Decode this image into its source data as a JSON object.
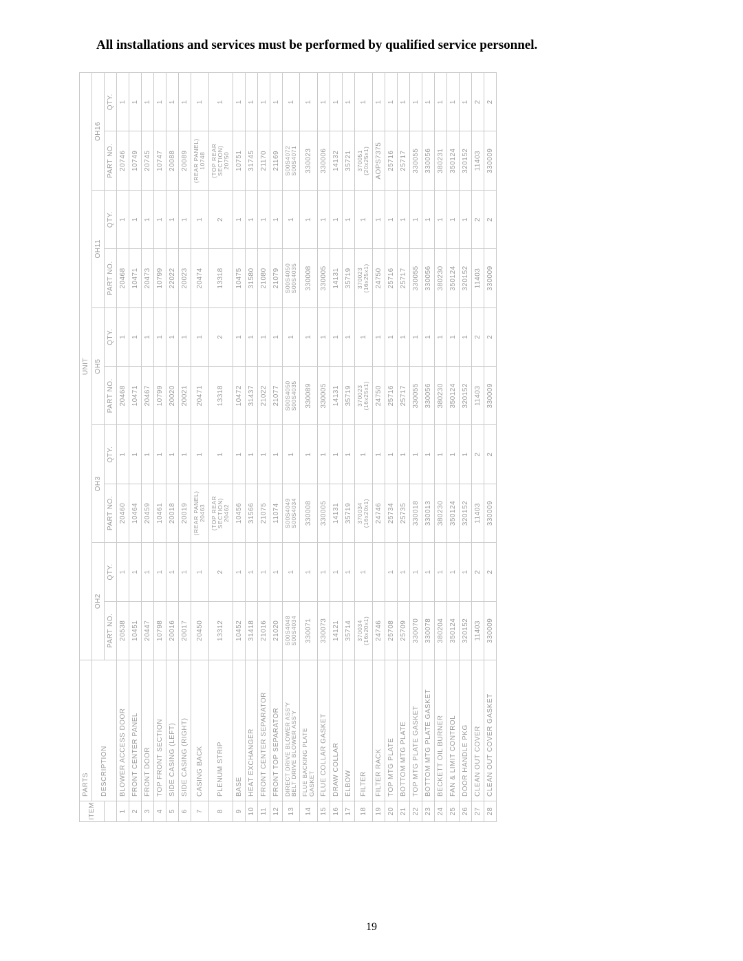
{
  "title": "All installations and services must be performed by qualified service personnel.",
  "page_number": "19",
  "headers": {
    "item": "ITEM",
    "parts": "PARTS",
    "desc": "DESCRIPTION",
    "unit": "UNIT",
    "part_no": "PART NO.",
    "qty": "QTY.",
    "models": [
      "OH2",
      "OH3",
      "OH5",
      "OH11",
      "OH16"
    ]
  },
  "rows": [
    {
      "item": "1",
      "desc": "BLOWER ACCESS DOOR",
      "oh2_p": "20538",
      "oh2_q": "1",
      "oh3_p": "20460",
      "oh3_q": "1",
      "oh5_p": "20468",
      "oh5_q": "1",
      "oh11_p": "20468",
      "oh11_q": "1",
      "oh16_p": "20746",
      "oh16_q": "1"
    },
    {
      "item": "2",
      "desc": "FRONT CENTER PANEL",
      "oh2_p": "10451",
      "oh2_q": "1",
      "oh3_p": "10464",
      "oh3_q": "1",
      "oh5_p": "10471",
      "oh5_q": "1",
      "oh11_p": "10471",
      "oh11_q": "1",
      "oh16_p": "10749",
      "oh16_q": "1"
    },
    {
      "item": "3",
      "desc": "FRONT DOOR",
      "oh2_p": "20447",
      "oh2_q": "1",
      "oh3_p": "20459",
      "oh3_q": "1",
      "oh5_p": "20467",
      "oh5_q": "1",
      "oh11_p": "20473",
      "oh11_q": "1",
      "oh16_p": "20745",
      "oh16_q": "1"
    },
    {
      "item": "4",
      "desc": "TOP FRONT SECTION",
      "oh2_p": "10798",
      "oh2_q": "1",
      "oh3_p": "10461",
      "oh3_q": "1",
      "oh5_p": "10799",
      "oh5_q": "1",
      "oh11_p": "10799",
      "oh11_q": "1",
      "oh16_p": "10747",
      "oh16_q": "1"
    },
    {
      "item": "5",
      "desc": "SIDE CASING (LEFT)",
      "oh2_p": "20016",
      "oh2_q": "1",
      "oh3_p": "20018",
      "oh3_q": "1",
      "oh5_p": "20020",
      "oh5_q": "1",
      "oh11_p": "22022",
      "oh11_q": "1",
      "oh16_p": "20088",
      "oh16_q": "1"
    },
    {
      "item": "6",
      "desc": "SIDE CASING (RIGHT)",
      "oh2_p": "20017",
      "oh2_q": "1",
      "oh3_p": "20019",
      "oh3_q": "1",
      "oh5_p": "20021",
      "oh5_q": "1",
      "oh11_p": "20023",
      "oh11_q": "1",
      "oh16_p": "20089",
      "oh16_q": "1"
    },
    {
      "item": "7",
      "desc": "CASING BACK",
      "oh2_p": "20450",
      "oh2_q": "1",
      "oh3_p": "(REAR PANEL)\n20463",
      "oh3_q": "1",
      "oh5_p": "20471",
      "oh5_q": "1",
      "oh11_p": "20474",
      "oh11_q": "1",
      "oh16_p": "(REAR PANEL)\n10748",
      "oh16_q": "1"
    },
    {
      "item": "8",
      "desc": "PLENUM STRIP",
      "oh2_p": "13312",
      "oh2_q": "2",
      "oh3_p": "(TOP REAR SECTION)\n20462",
      "oh3_q": "1",
      "oh5_p": "13318",
      "oh5_q": "2",
      "oh11_p": "13318",
      "oh11_q": "2",
      "oh16_p": "(TOP REAR SECTION)\n20750",
      "oh16_q": "1"
    },
    {
      "item": "9",
      "desc": "BASE",
      "oh2_p": "10452",
      "oh2_q": "1",
      "oh3_p": "10456",
      "oh3_q": "1",
      "oh5_p": "10472",
      "oh5_q": "1",
      "oh11_p": "10475",
      "oh11_q": "1",
      "oh16_p": "10751",
      "oh16_q": "1"
    },
    {
      "item": "10",
      "desc": "HEAT EXCHANGER",
      "oh2_p": "31418",
      "oh2_q": "1",
      "oh3_p": "31566",
      "oh3_q": "1",
      "oh5_p": "31437",
      "oh5_q": "1",
      "oh11_p": "31580",
      "oh11_q": "1",
      "oh16_p": "31745",
      "oh16_q": "1"
    },
    {
      "item": "11",
      "desc": "FRONT CENTER SEPARATOR",
      "oh2_p": "21016",
      "oh2_q": "1",
      "oh3_p": "21075",
      "oh3_q": "1",
      "oh5_p": "21022",
      "oh5_q": "1",
      "oh11_p": "21080",
      "oh11_q": "1",
      "oh16_p": "21170",
      "oh16_q": "1"
    },
    {
      "item": "12",
      "desc": "FRONT TOP SEPARATOR",
      "oh2_p": "21020",
      "oh2_q": "1",
      "oh3_p": "11074",
      "oh3_q": "1",
      "oh5_p": "21077",
      "oh5_q": "1",
      "oh11_p": "21079",
      "oh11_q": "1",
      "oh16_p": "21169",
      "oh16_q": "1"
    },
    {
      "item": "13",
      "desc": "DIRECT DRIVE BLOWER ASS'Y\nBELT DRIVE BLOWER ASS'Y",
      "oh2_p": "S00S4048\nS00S4034",
      "oh2_q": "1",
      "oh3_p": "S00S4049\nS00S4034",
      "oh3_q": "1",
      "oh5_p": "S00S4050\nS00S4035",
      "oh5_q": "1",
      "oh11_p": "S00S4050\nS00S4035",
      "oh11_q": "1",
      "oh16_p": "S00S4072\nS00S4071",
      "oh16_q": "1"
    },
    {
      "item": "14",
      "desc": "FLUE BACKING PLATE\nGASKET",
      "oh2_p": "330071",
      "oh2_q": "1",
      "oh3_p": "330008",
      "oh3_q": "1",
      "oh5_p": "330089",
      "oh5_q": "1",
      "oh11_p": "330008",
      "oh11_q": "1",
      "oh16_p": "330023",
      "oh16_q": "1"
    },
    {
      "item": "15",
      "desc": "FLUE COLLAR GASKET",
      "oh2_p": "330073",
      "oh2_q": "1",
      "oh3_p": "330005",
      "oh3_q": "1",
      "oh5_p": "330005",
      "oh5_q": "1",
      "oh11_p": "330005",
      "oh11_q": "1",
      "oh16_p": "330006",
      "oh16_q": "1"
    },
    {
      "item": "16",
      "desc": "DRAW COLLAR",
      "oh2_p": "14121",
      "oh2_q": "1",
      "oh3_p": "14131",
      "oh3_q": "1",
      "oh5_p": "14131",
      "oh5_q": "1",
      "oh11_p": "14131",
      "oh11_q": "1",
      "oh16_p": "14132",
      "oh16_q": "1"
    },
    {
      "item": "17",
      "desc": "ELBOW",
      "oh2_p": "35714",
      "oh2_q": "1",
      "oh3_p": "35719",
      "oh3_q": "1",
      "oh5_p": "35719",
      "oh5_q": "1",
      "oh11_p": "35719",
      "oh11_q": "1",
      "oh16_p": "35721",
      "oh16_q": "1"
    },
    {
      "item": "18",
      "desc": "FILTER",
      "oh2_p": "370034\n(16x20x1)",
      "oh2_q": "1",
      "oh3_p": "370034\n(16x20x1)",
      "oh3_q": "1",
      "oh5_p": "370023\n(16x25x1)",
      "oh5_q": "1",
      "oh11_p": "370023\n(16x25x1)",
      "oh11_q": "1",
      "oh16_p": "370051\n(20x25x1)",
      "oh16_q": "1"
    },
    {
      "item": "19",
      "desc": "FILTER RACK",
      "oh2_p": "24746",
      "oh2_q": "",
      "oh3_p": "24746",
      "oh3_q": "1",
      "oh5_p": "24750",
      "oh5_q": "1",
      "oh11_p": "24750",
      "oh11_q": "1",
      "oh16_p": "AOPS7375",
      "oh16_q": "1"
    },
    {
      "item": "20",
      "desc": "TOP MTG PLATE",
      "oh2_p": "25708",
      "oh2_q": "1",
      "oh3_p": "25734",
      "oh3_q": "1",
      "oh5_p": "25716",
      "oh5_q": "1",
      "oh11_p": "25716",
      "oh11_q": "1",
      "oh16_p": "25716",
      "oh16_q": "1"
    },
    {
      "item": "21",
      "desc": "BOTTOM MTG PLATE",
      "oh2_p": "25709",
      "oh2_q": "1",
      "oh3_p": "25735",
      "oh3_q": "1",
      "oh5_p": "25717",
      "oh5_q": "1",
      "oh11_p": "25717",
      "oh11_q": "1",
      "oh16_p": "25717",
      "oh16_q": "1"
    },
    {
      "item": "22",
      "desc": "TOP MTG PLATE GASKET",
      "oh2_p": "330070",
      "oh2_q": "1",
      "oh3_p": "330018",
      "oh3_q": "1",
      "oh5_p": "330055",
      "oh5_q": "1",
      "oh11_p": "330055",
      "oh11_q": "1",
      "oh16_p": "330055",
      "oh16_q": "1"
    },
    {
      "item": "23",
      "desc": "BOTTOM MTG PLATE GASKET",
      "oh2_p": "330078",
      "oh2_q": "1",
      "oh3_p": "330013",
      "oh3_q": "1",
      "oh5_p": "330056",
      "oh5_q": "1",
      "oh11_p": "330056",
      "oh11_q": "1",
      "oh16_p": "330056",
      "oh16_q": "1"
    },
    {
      "item": "24",
      "desc": "BECKETT OIL BURNER",
      "oh2_p": "380204",
      "oh2_q": "1",
      "oh3_p": "380230",
      "oh3_q": "1",
      "oh5_p": "380230",
      "oh5_q": "1",
      "oh11_p": "380230",
      "oh11_q": "1",
      "oh16_p": "380231",
      "oh16_q": "1"
    },
    {
      "item": "25",
      "desc": "FAN & LIMIT CONTROL",
      "oh2_p": "350124",
      "oh2_q": "1",
      "oh3_p": "350124",
      "oh3_q": "1",
      "oh5_p": "350124",
      "oh5_q": "1",
      "oh11_p": "350124",
      "oh11_q": "1",
      "oh16_p": "350124",
      "oh16_q": "1"
    },
    {
      "item": "26",
      "desc": "DOOR HANDLE PKG",
      "oh2_p": "320152",
      "oh2_q": "1",
      "oh3_p": "320152",
      "oh3_q": "1",
      "oh5_p": "320152",
      "oh5_q": "1",
      "oh11_p": "320152",
      "oh11_q": "1",
      "oh16_p": "320152",
      "oh16_q": "1"
    },
    {
      "item": "27",
      "desc": "CLEAN OUT COVER",
      "oh2_p": "11403",
      "oh2_q": "2",
      "oh3_p": "11403",
      "oh3_q": "2",
      "oh5_p": "11403",
      "oh5_q": "2",
      "oh11_p": "11403",
      "oh11_q": "2",
      "oh16_p": "11403",
      "oh16_q": "2"
    },
    {
      "item": "28",
      "desc": "CLEAN OUT COVER GASKET",
      "oh2_p": "330009",
      "oh2_q": "2",
      "oh3_p": "330009",
      "oh3_q": "2",
      "oh5_p": "330009",
      "oh5_q": "2",
      "oh11_p": "330009",
      "oh11_q": "2",
      "oh16_p": "330009",
      "oh16_q": "2"
    }
  ]
}
